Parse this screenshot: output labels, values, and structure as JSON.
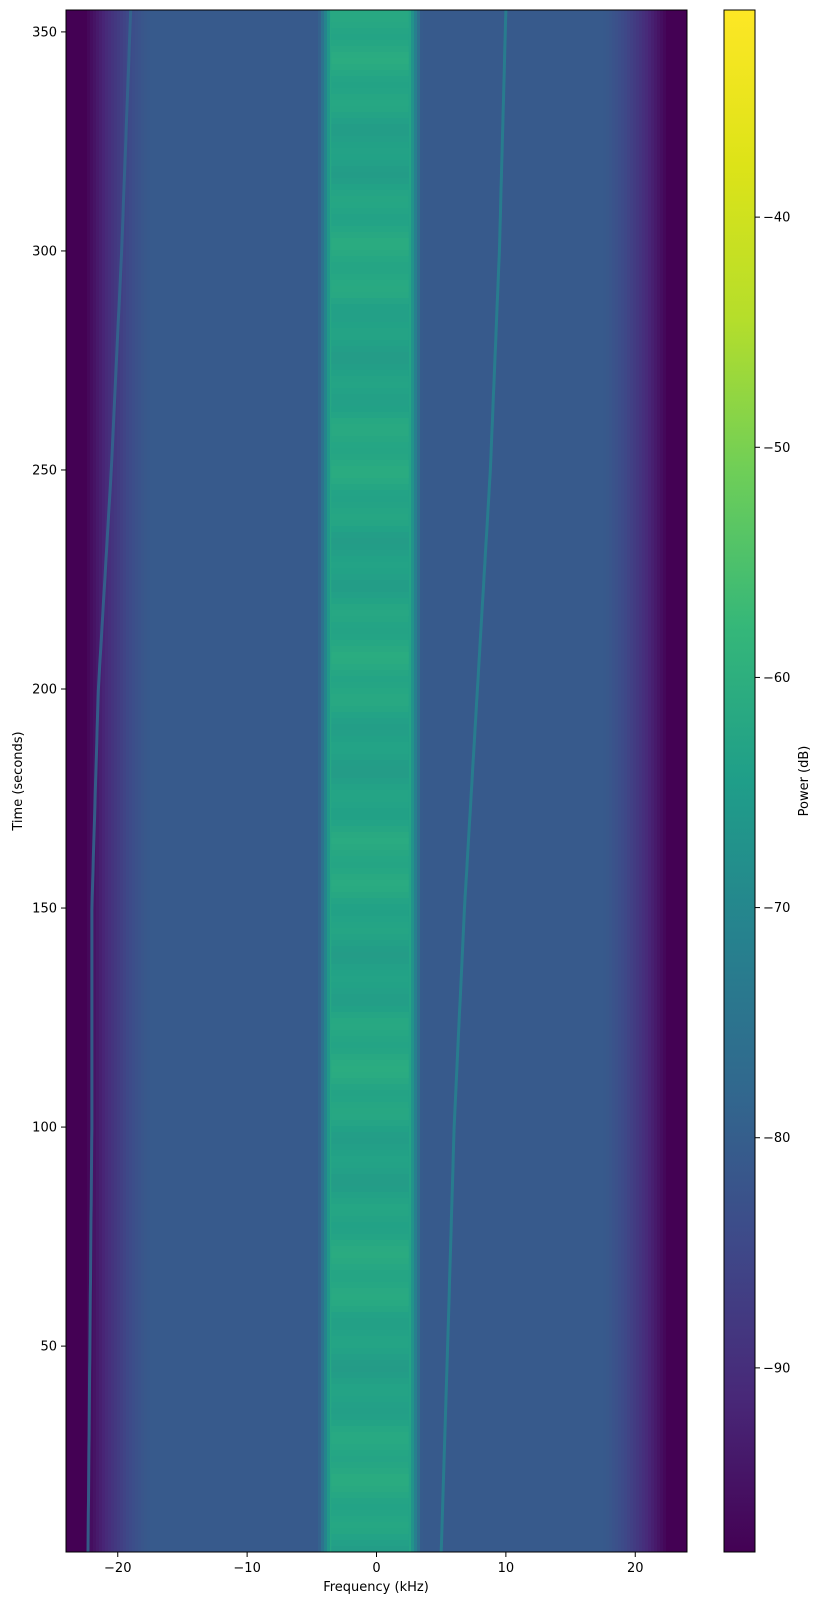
{
  "chart_data": {
    "type": "heatmap",
    "title": "",
    "xlabel": "Frequency (kHz)",
    "ylabel": "Time (seconds)",
    "xlim": [
      -24,
      24
    ],
    "ylim": [
      3,
      355
    ],
    "xticks": [
      -20,
      -10,
      0,
      10,
      20
    ],
    "xtick_labels": [
      "−20",
      "−10",
      "0",
      "10",
      "20"
    ],
    "yticks": [
      50,
      100,
      150,
      200,
      250,
      300,
      350
    ],
    "ytick_labels": [
      "50",
      "100",
      "150",
      "200",
      "250",
      "300",
      "350"
    ],
    "colorbar": {
      "label": "Power (dB)",
      "colormap": "viridis",
      "range": [
        -98,
        -31
      ],
      "ticks": [
        -90,
        -80,
        -70,
        -60,
        -50,
        -40
      ],
      "tick_labels": [
        "−90",
        "−80",
        "−70",
        "−60",
        "−50",
        "−40"
      ]
    },
    "features": {
      "central_band": {
        "freq_range_khz": [
          -3.5,
          2.5
        ],
        "power_db": -62
      },
      "background_power_db": -81,
      "edge_rolloff_khz": [
        -22,
        22
      ],
      "edge_power_db": -98,
      "drifting_tones": [
        {
          "time_s": [
            3,
            100,
            150,
            200,
            250,
            300,
            355
          ],
          "freq_khz": [
            -22.3,
            -22.0,
            -22.0,
            -21.5,
            -20.5,
            -19.7,
            -19.0
          ],
          "power_db": -78
        },
        {
          "time_s": [
            3,
            50,
            100,
            150,
            200,
            250,
            300,
            355
          ],
          "freq_khz": [
            5.0,
            5.5,
            6.0,
            6.8,
            7.8,
            8.8,
            9.5,
            10.0
          ],
          "power_db": -71
        }
      ]
    }
  }
}
